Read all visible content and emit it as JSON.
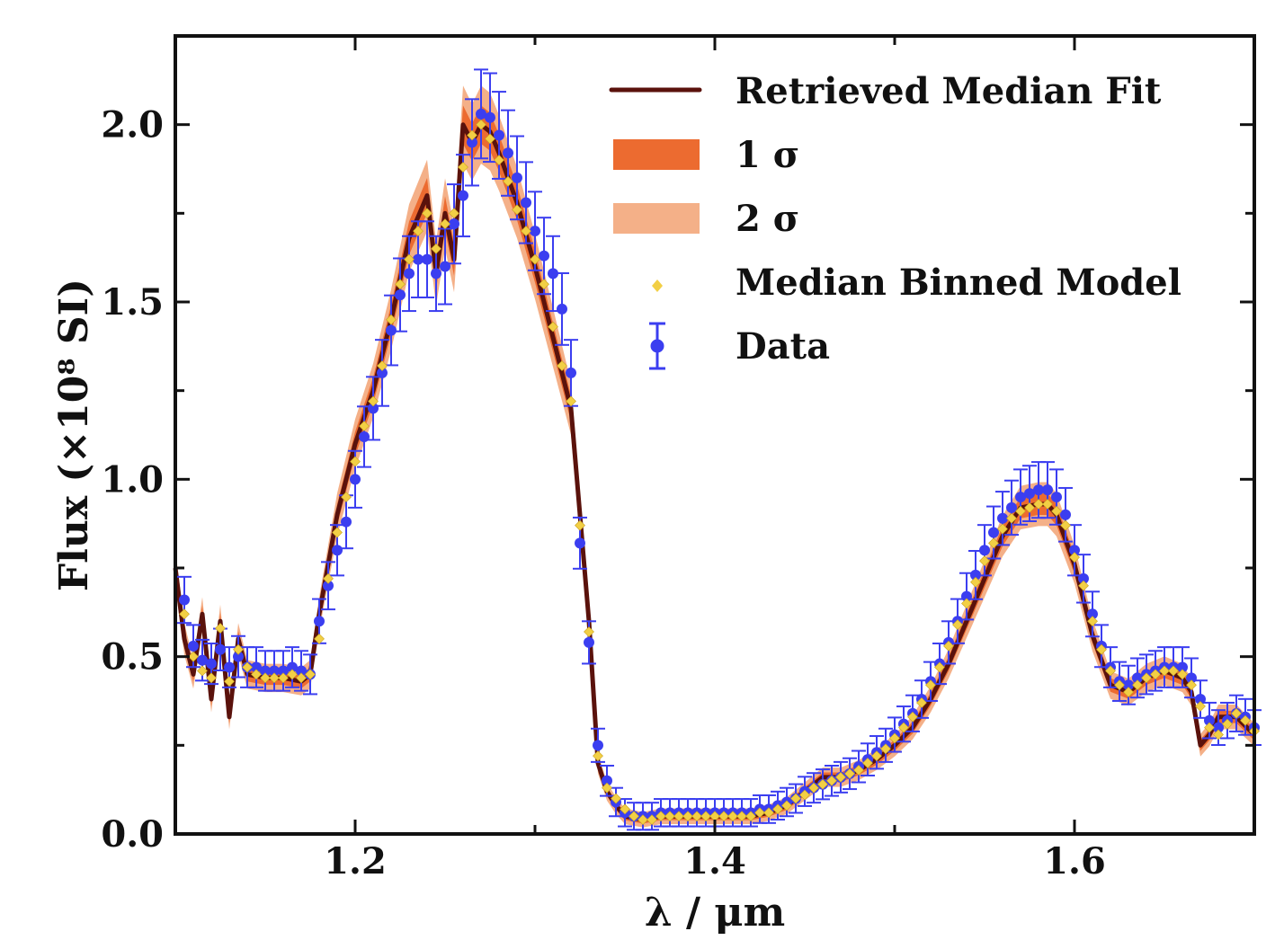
{
  "chart_data": {
    "type": "line",
    "xlabel": "λ / μm",
    "ylabel": "Flux (×10⁸ SI)",
    "xlim": [
      1.1,
      1.7
    ],
    "ylim": [
      0.0,
      2.25
    ],
    "x_ticks": [
      1.2,
      1.4,
      1.6
    ],
    "x_tick_labels": [
      "1.2",
      "1.4",
      "1.6"
    ],
    "y_ticks": [
      0.0,
      0.5,
      1.0,
      1.5,
      2.0
    ],
    "y_tick_labels": [
      "0.0",
      "0.5",
      "1.0",
      "1.5",
      "2.0"
    ],
    "legend_position": "top-right",
    "legend": [
      {
        "label": "Retrieved Median Fit",
        "kind": "line"
      },
      {
        "label": "1 σ",
        "kind": "band"
      },
      {
        "label": "2 σ",
        "kind": "band"
      },
      {
        "label": "Median Binned Model",
        "kind": "diamond"
      },
      {
        "label": "Data",
        "kind": "errorbar"
      }
    ],
    "colors": {
      "fit": "#5a120c",
      "sigma1": "#ec6b30",
      "sigma2": "#f4b088",
      "binned": "#f2cf45",
      "data": "#3b3ef0"
    },
    "series": [
      {
        "name": "Retrieved Median Fit",
        "x": [
          1.1,
          1.105,
          1.11,
          1.115,
          1.12,
          1.125,
          1.13,
          1.135,
          1.14,
          1.15,
          1.16,
          1.17,
          1.175,
          1.18,
          1.19,
          1.2,
          1.21,
          1.22,
          1.23,
          1.24,
          1.245,
          1.25,
          1.255,
          1.26,
          1.265,
          1.27,
          1.275,
          1.28,
          1.29,
          1.3,
          1.31,
          1.32,
          1.325,
          1.33,
          1.335,
          1.34,
          1.345,
          1.35,
          1.36,
          1.37,
          1.38,
          1.39,
          1.4,
          1.41,
          1.42,
          1.43,
          1.44,
          1.45,
          1.46,
          1.47,
          1.48,
          1.49,
          1.5,
          1.51,
          1.52,
          1.53,
          1.54,
          1.55,
          1.56,
          1.57,
          1.58,
          1.585,
          1.59,
          1.6,
          1.61,
          1.62,
          1.63,
          1.64,
          1.65,
          1.66,
          1.665,
          1.67,
          1.675,
          1.68,
          1.69,
          1.7
        ],
        "y": [
          0.75,
          0.55,
          0.45,
          0.62,
          0.38,
          0.6,
          0.33,
          0.55,
          0.45,
          0.44,
          0.44,
          0.43,
          0.45,
          0.62,
          0.9,
          1.1,
          1.25,
          1.45,
          1.68,
          1.8,
          1.58,
          1.75,
          1.62,
          2.0,
          1.95,
          2.0,
          1.98,
          1.92,
          1.78,
          1.6,
          1.4,
          1.2,
          0.9,
          0.6,
          0.2,
          0.12,
          0.08,
          0.05,
          0.04,
          0.05,
          0.05,
          0.05,
          0.05,
          0.05,
          0.05,
          0.06,
          0.08,
          0.12,
          0.16,
          0.16,
          0.18,
          0.21,
          0.25,
          0.3,
          0.38,
          0.48,
          0.6,
          0.72,
          0.84,
          0.92,
          0.93,
          0.93,
          0.9,
          0.76,
          0.56,
          0.42,
          0.4,
          0.44,
          0.46,
          0.44,
          0.4,
          0.25,
          0.28,
          0.33,
          0.33,
          0.28
        ]
      },
      {
        "name": "Median Binned Model",
        "x": [
          1.105,
          1.11,
          1.115,
          1.12,
          1.125,
          1.13,
          1.135,
          1.14,
          1.145,
          1.15,
          1.155,
          1.16,
          1.165,
          1.17,
          1.175,
          1.18,
          1.185,
          1.19,
          1.195,
          1.2,
          1.205,
          1.21,
          1.215,
          1.22,
          1.225,
          1.23,
          1.235,
          1.24,
          1.245,
          1.25,
          1.255,
          1.26,
          1.265,
          1.27,
          1.275,
          1.28,
          1.285,
          1.29,
          1.295,
          1.3,
          1.305,
          1.31,
          1.315,
          1.32,
          1.325,
          1.33,
          1.335,
          1.34,
          1.345,
          1.35,
          1.355,
          1.36,
          1.365,
          1.37,
          1.375,
          1.38,
          1.385,
          1.39,
          1.395,
          1.4,
          1.405,
          1.41,
          1.415,
          1.42,
          1.425,
          1.43,
          1.435,
          1.44,
          1.445,
          1.45,
          1.455,
          1.46,
          1.465,
          1.47,
          1.475,
          1.48,
          1.485,
          1.49,
          1.495,
          1.5,
          1.505,
          1.51,
          1.515,
          1.52,
          1.525,
          1.53,
          1.535,
          1.54,
          1.545,
          1.55,
          1.555,
          1.56,
          1.565,
          1.57,
          1.575,
          1.58,
          1.585,
          1.59,
          1.595,
          1.6,
          1.605,
          1.61,
          1.615,
          1.62,
          1.625,
          1.63,
          1.635,
          1.64,
          1.645,
          1.65,
          1.655,
          1.66,
          1.665,
          1.67,
          1.675,
          1.68,
          1.685,
          1.69,
          1.695,
          1.7
        ],
        "y": [
          0.62,
          0.5,
          0.46,
          0.44,
          0.58,
          0.43,
          0.52,
          0.47,
          0.45,
          0.44,
          0.44,
          0.44,
          0.45,
          0.44,
          0.45,
          0.55,
          0.72,
          0.85,
          0.95,
          1.05,
          1.15,
          1.22,
          1.32,
          1.45,
          1.55,
          1.62,
          1.7,
          1.75,
          1.65,
          1.72,
          1.75,
          1.88,
          1.97,
          2.0,
          1.96,
          1.9,
          1.84,
          1.76,
          1.7,
          1.62,
          1.55,
          1.43,
          1.32,
          1.22,
          0.87,
          0.57,
          0.22,
          0.13,
          0.1,
          0.07,
          0.05,
          0.04,
          0.04,
          0.05,
          0.05,
          0.05,
          0.05,
          0.05,
          0.05,
          0.05,
          0.05,
          0.05,
          0.05,
          0.05,
          0.06,
          0.06,
          0.07,
          0.08,
          0.1,
          0.11,
          0.13,
          0.14,
          0.15,
          0.16,
          0.17,
          0.18,
          0.2,
          0.22,
          0.24,
          0.27,
          0.3,
          0.33,
          0.37,
          0.42,
          0.47,
          0.53,
          0.59,
          0.65,
          0.71,
          0.77,
          0.82,
          0.86,
          0.89,
          0.91,
          0.92,
          0.93,
          0.93,
          0.91,
          0.87,
          0.78,
          0.7,
          0.6,
          0.52,
          0.46,
          0.42,
          0.4,
          0.42,
          0.44,
          0.45,
          0.46,
          0.46,
          0.45,
          0.42,
          0.36,
          0.3,
          0.28,
          0.31,
          0.34,
          0.32,
          0.29
        ]
      },
      {
        "name": "Data",
        "x": [
          1.105,
          1.11,
          1.115,
          1.12,
          1.125,
          1.13,
          1.135,
          1.14,
          1.145,
          1.15,
          1.155,
          1.16,
          1.165,
          1.17,
          1.175,
          1.18,
          1.185,
          1.19,
          1.195,
          1.2,
          1.205,
          1.21,
          1.215,
          1.22,
          1.225,
          1.23,
          1.235,
          1.24,
          1.245,
          1.25,
          1.255,
          1.26,
          1.265,
          1.27,
          1.275,
          1.28,
          1.285,
          1.29,
          1.295,
          1.3,
          1.305,
          1.31,
          1.315,
          1.32,
          1.325,
          1.33,
          1.335,
          1.34,
          1.345,
          1.35,
          1.355,
          1.36,
          1.365,
          1.37,
          1.375,
          1.38,
          1.385,
          1.39,
          1.395,
          1.4,
          1.405,
          1.41,
          1.415,
          1.42,
          1.425,
          1.43,
          1.435,
          1.44,
          1.445,
          1.45,
          1.455,
          1.46,
          1.465,
          1.47,
          1.475,
          1.48,
          1.485,
          1.49,
          1.495,
          1.5,
          1.505,
          1.51,
          1.515,
          1.52,
          1.525,
          1.53,
          1.535,
          1.54,
          1.545,
          1.55,
          1.555,
          1.56,
          1.565,
          1.57,
          1.575,
          1.58,
          1.585,
          1.59,
          1.595,
          1.6,
          1.605,
          1.61,
          1.615,
          1.62,
          1.625,
          1.63,
          1.635,
          1.64,
          1.645,
          1.65,
          1.655,
          1.66,
          1.665,
          1.67,
          1.675,
          1.68,
          1.685,
          1.69,
          1.695,
          1.7
        ],
        "y": [
          0.66,
          0.53,
          0.49,
          0.48,
          0.52,
          0.47,
          0.5,
          0.47,
          0.47,
          0.46,
          0.46,
          0.46,
          0.47,
          0.46,
          0.45,
          0.6,
          0.7,
          0.8,
          0.88,
          1.0,
          1.12,
          1.2,
          1.3,
          1.42,
          1.52,
          1.58,
          1.62,
          1.62,
          1.58,
          1.6,
          1.72,
          1.8,
          1.95,
          2.03,
          2.02,
          1.97,
          1.92,
          1.85,
          1.78,
          1.7,
          1.63,
          1.58,
          1.48,
          1.3,
          0.82,
          0.54,
          0.25,
          0.15,
          0.09,
          0.06,
          0.05,
          0.05,
          0.05,
          0.06,
          0.06,
          0.06,
          0.06,
          0.06,
          0.06,
          0.06,
          0.06,
          0.06,
          0.06,
          0.06,
          0.07,
          0.07,
          0.08,
          0.09,
          0.1,
          0.12,
          0.13,
          0.14,
          0.15,
          0.16,
          0.17,
          0.19,
          0.21,
          0.23,
          0.25,
          0.28,
          0.31,
          0.34,
          0.38,
          0.43,
          0.48,
          0.54,
          0.6,
          0.67,
          0.73,
          0.8,
          0.85,
          0.89,
          0.92,
          0.95,
          0.96,
          0.97,
          0.97,
          0.95,
          0.9,
          0.8,
          0.72,
          0.62,
          0.53,
          0.47,
          0.43,
          0.42,
          0.44,
          0.45,
          0.46,
          0.47,
          0.47,
          0.47,
          0.44,
          0.38,
          0.32,
          0.3,
          0.32,
          0.34,
          0.33,
          0.3
        ],
        "error": 0.08
      }
    ]
  }
}
